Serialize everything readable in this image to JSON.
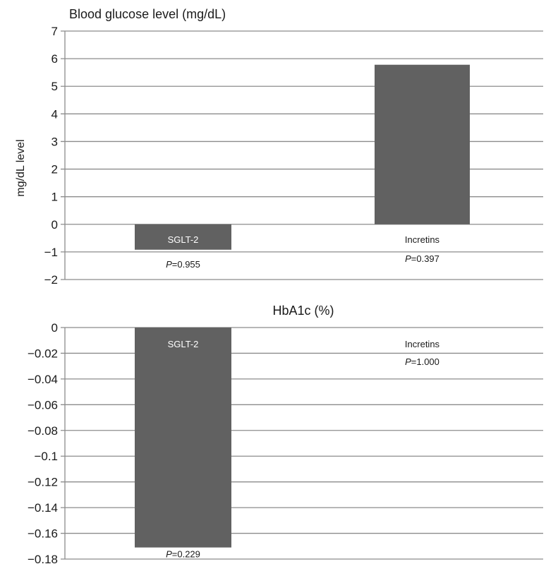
{
  "chart_data": [
    {
      "type": "bar",
      "title": "Blood glucose level (mg/dL)",
      "ylabel": "mg/dL level",
      "xlabel": "",
      "ylim": [
        -2,
        7
      ],
      "yticks": [
        "7",
        "6",
        "5",
        "4",
        "3",
        "2",
        "1",
        "0",
        "−1",
        "−2"
      ],
      "categories": [
        "SGLT-2",
        "Incretins"
      ],
      "values": [
        -0.92,
        5.78
      ],
      "p_values": [
        "P=0.955",
        "P=0.397"
      ],
      "p_prefix": "P",
      "p_rest": [
        "=0.955",
        "=0.397"
      ],
      "grid": true,
      "bar_color": "#616161"
    },
    {
      "type": "bar",
      "title": "HbA1c (%)",
      "ylabel": "",
      "xlabel": "",
      "ylim": [
        -0.18,
        0
      ],
      "yticks": [
        "0",
        "−0.02",
        "−0.04",
        "−0.06",
        "−0.08",
        "−0.1",
        "−0.12",
        "−0.14",
        "−0.16",
        "−0.18"
      ],
      "categories": [
        "SGLT-2",
        "Incretins"
      ],
      "values": [
        -0.171,
        0.0
      ],
      "p_values": [
        "P=0.229",
        "P=1.000"
      ],
      "p_prefix": "P",
      "p_rest": [
        "=0.229",
        "=1.000"
      ],
      "grid": true,
      "bar_color": "#616161"
    }
  ]
}
